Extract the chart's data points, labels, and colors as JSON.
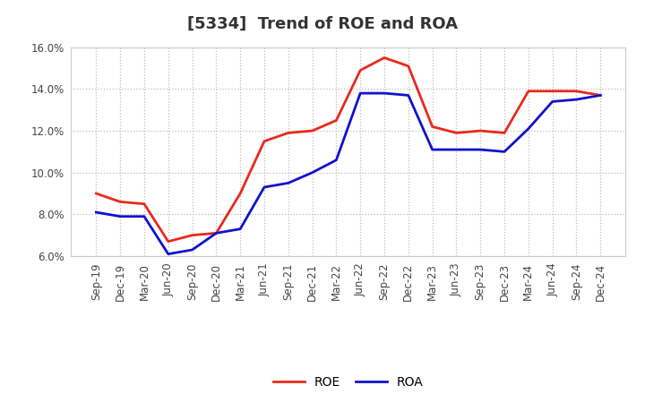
{
  "title": "[5334]  Trend of ROE and ROA",
  "x_labels": [
    "Sep-19",
    "Dec-19",
    "Mar-20",
    "Jun-20",
    "Sep-20",
    "Dec-20",
    "Mar-21",
    "Jun-21",
    "Sep-21",
    "Dec-21",
    "Mar-22",
    "Jun-22",
    "Sep-22",
    "Dec-22",
    "Mar-23",
    "Jun-23",
    "Sep-23",
    "Dec-23",
    "Mar-24",
    "Jun-24",
    "Sep-24",
    "Dec-24"
  ],
  "roe": [
    9.0,
    8.6,
    8.5,
    6.7,
    7.0,
    7.1,
    9.0,
    11.5,
    11.9,
    12.0,
    12.5,
    14.9,
    15.5,
    15.1,
    12.2,
    11.9,
    12.0,
    11.9,
    13.9,
    13.9,
    13.9,
    13.7
  ],
  "roa": [
    8.1,
    7.9,
    7.9,
    6.1,
    6.3,
    7.1,
    7.3,
    9.3,
    9.5,
    10.0,
    10.6,
    13.8,
    13.8,
    13.7,
    11.1,
    11.1,
    11.1,
    11.0,
    12.1,
    13.4,
    13.5,
    13.7
  ],
  "roe_color": "#e8291c",
  "roa_color": "#1111cc",
  "ylim": [
    6.0,
    16.0
  ],
  "yticks": [
    6.0,
    8.0,
    10.0,
    12.0,
    14.0,
    16.0
  ],
  "background_color": "#ffffff",
  "plot_bg_color": "#ffffff",
  "grid_color": "#bbbbbb",
  "title_fontsize": 13,
  "axis_fontsize": 8.5,
  "legend_fontsize": 10,
  "line_width": 2.0
}
